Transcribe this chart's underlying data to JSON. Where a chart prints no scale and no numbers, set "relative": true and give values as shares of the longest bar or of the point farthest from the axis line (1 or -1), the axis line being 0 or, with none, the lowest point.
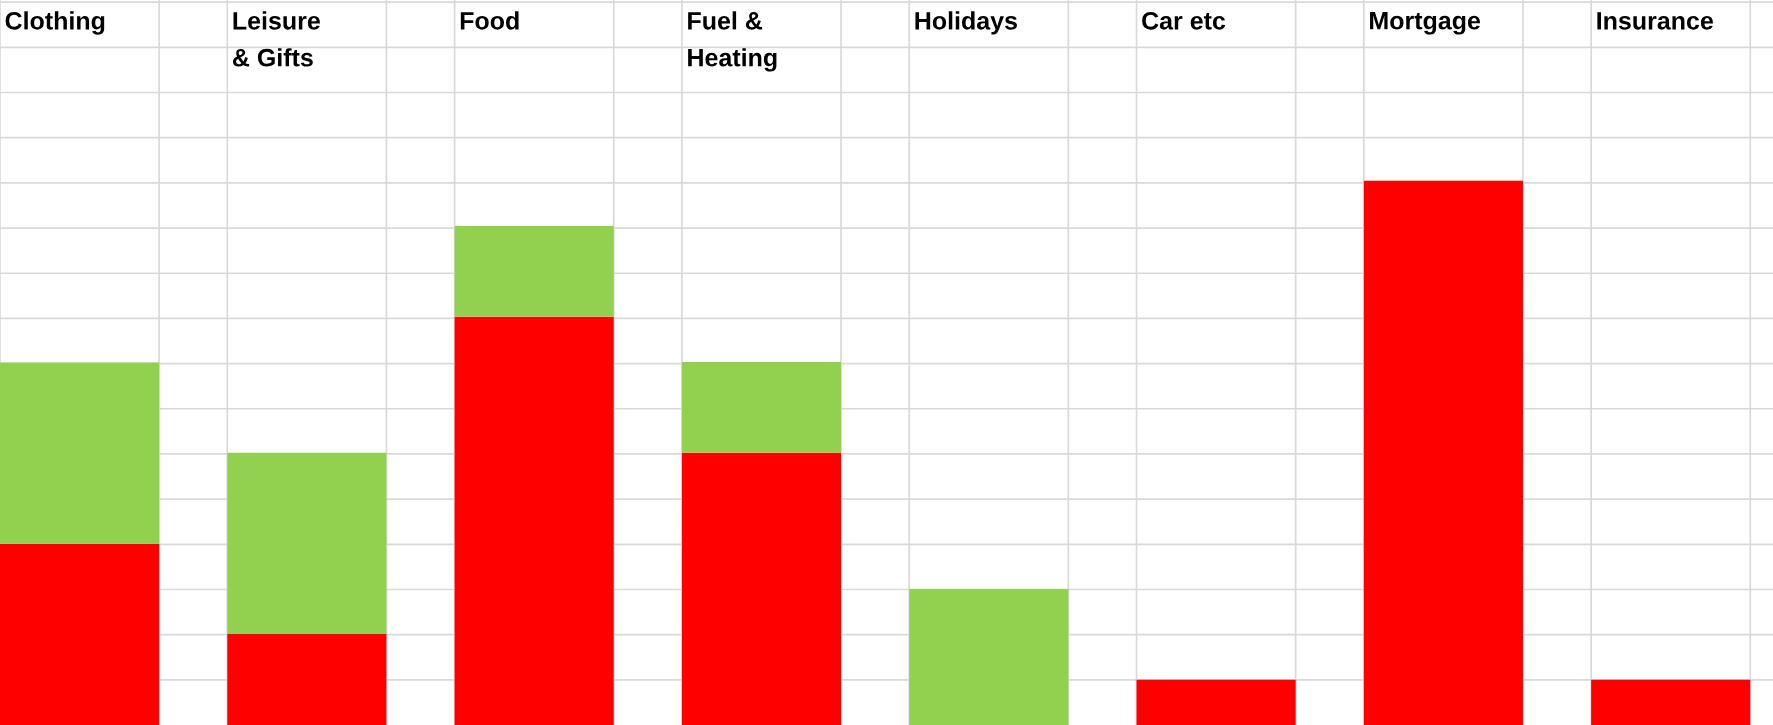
{
  "chart_data": {
    "type": "bar",
    "relative": true,
    "stacked": true,
    "grid": true,
    "categories": [
      "Clothing",
      "Leisure\n& Gifts",
      "Food",
      "Fuel &\nHeating",
      "Holidays",
      "Car etc",
      "Mortgage",
      "Insurance"
    ],
    "series": [
      {
        "color": "#ff0000",
        "values": [
          0.333,
          0.167,
          0.75,
          0.5,
          0,
          0.083,
          1,
          0.083
        ]
      },
      {
        "color": "#92d050",
        "values": [
          0.333,
          0.333,
          0.167,
          0.167,
          0.25,
          0,
          0,
          0
        ]
      }
    ]
  }
}
